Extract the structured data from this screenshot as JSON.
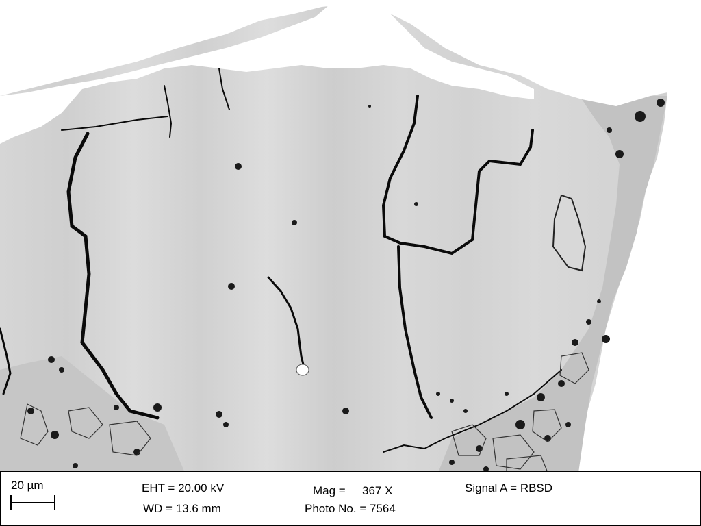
{
  "micrograph": {
    "scale_label": "20 µm",
    "eht": "EHT = 20.00 kV",
    "wd": "WD = 13.6 mm",
    "mag_label": "Mag =",
    "mag_value": "367 X",
    "photo_no": "Photo No. = 7564",
    "signal": "Signal A = RBSD"
  },
  "colors": {
    "background": "#ffffff",
    "grain": "#d3d3d3",
    "crack": "#0a0a0a",
    "pore": "#1a1a1a"
  }
}
